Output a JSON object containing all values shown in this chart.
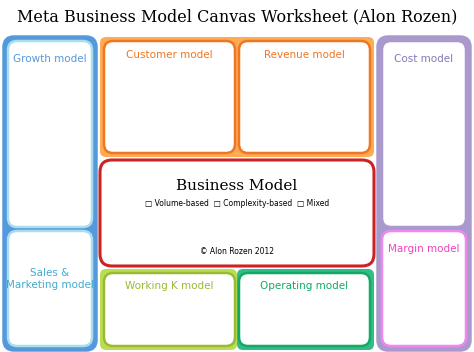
{
  "title": "Meta Business Model Canvas Worksheet (Alon Rozen)",
  "title_fontsize": 11.5,
  "title_font": "DejaVu Serif",
  "background_color": "#ffffff",
  "left_outer_bg": "#5599dd",
  "right_outer_bg": "#aa99cc",
  "top_inner_bg": "#ffaa55",
  "bottom_left_bg": "#bbdd55",
  "bottom_right_bg": "#33bb88",
  "center_border": "#cc2222",
  "center_title": "Business Model",
  "center_subtitle": "□ Volume-based  □ Complexity-based  □ Mixed",
  "center_copyright": "© Alon Rozen 2012",
  "growth_label": "Growth model",
  "growth_color": "#5599dd",
  "sales_label": "Sales &\nMarketing model",
  "sales_color": "#44aacc",
  "customer_label": "Customer model",
  "customer_color": "#ee7722",
  "revenue_label": "Revenue model",
  "revenue_color": "#ee7722",
  "cost_label": "Cost model",
  "cost_color": "#8877bb",
  "cost_border": "#aa99cc",
  "margin_label": "Margin model",
  "margin_color": "#ee44bb",
  "margin_border": "#ee88ee",
  "workingk_label": "Working K model",
  "workingk_color": "#99bb33",
  "operating_label": "Operating model",
  "operating_color": "#11aa66",
  "label_fontsize": 7.5
}
